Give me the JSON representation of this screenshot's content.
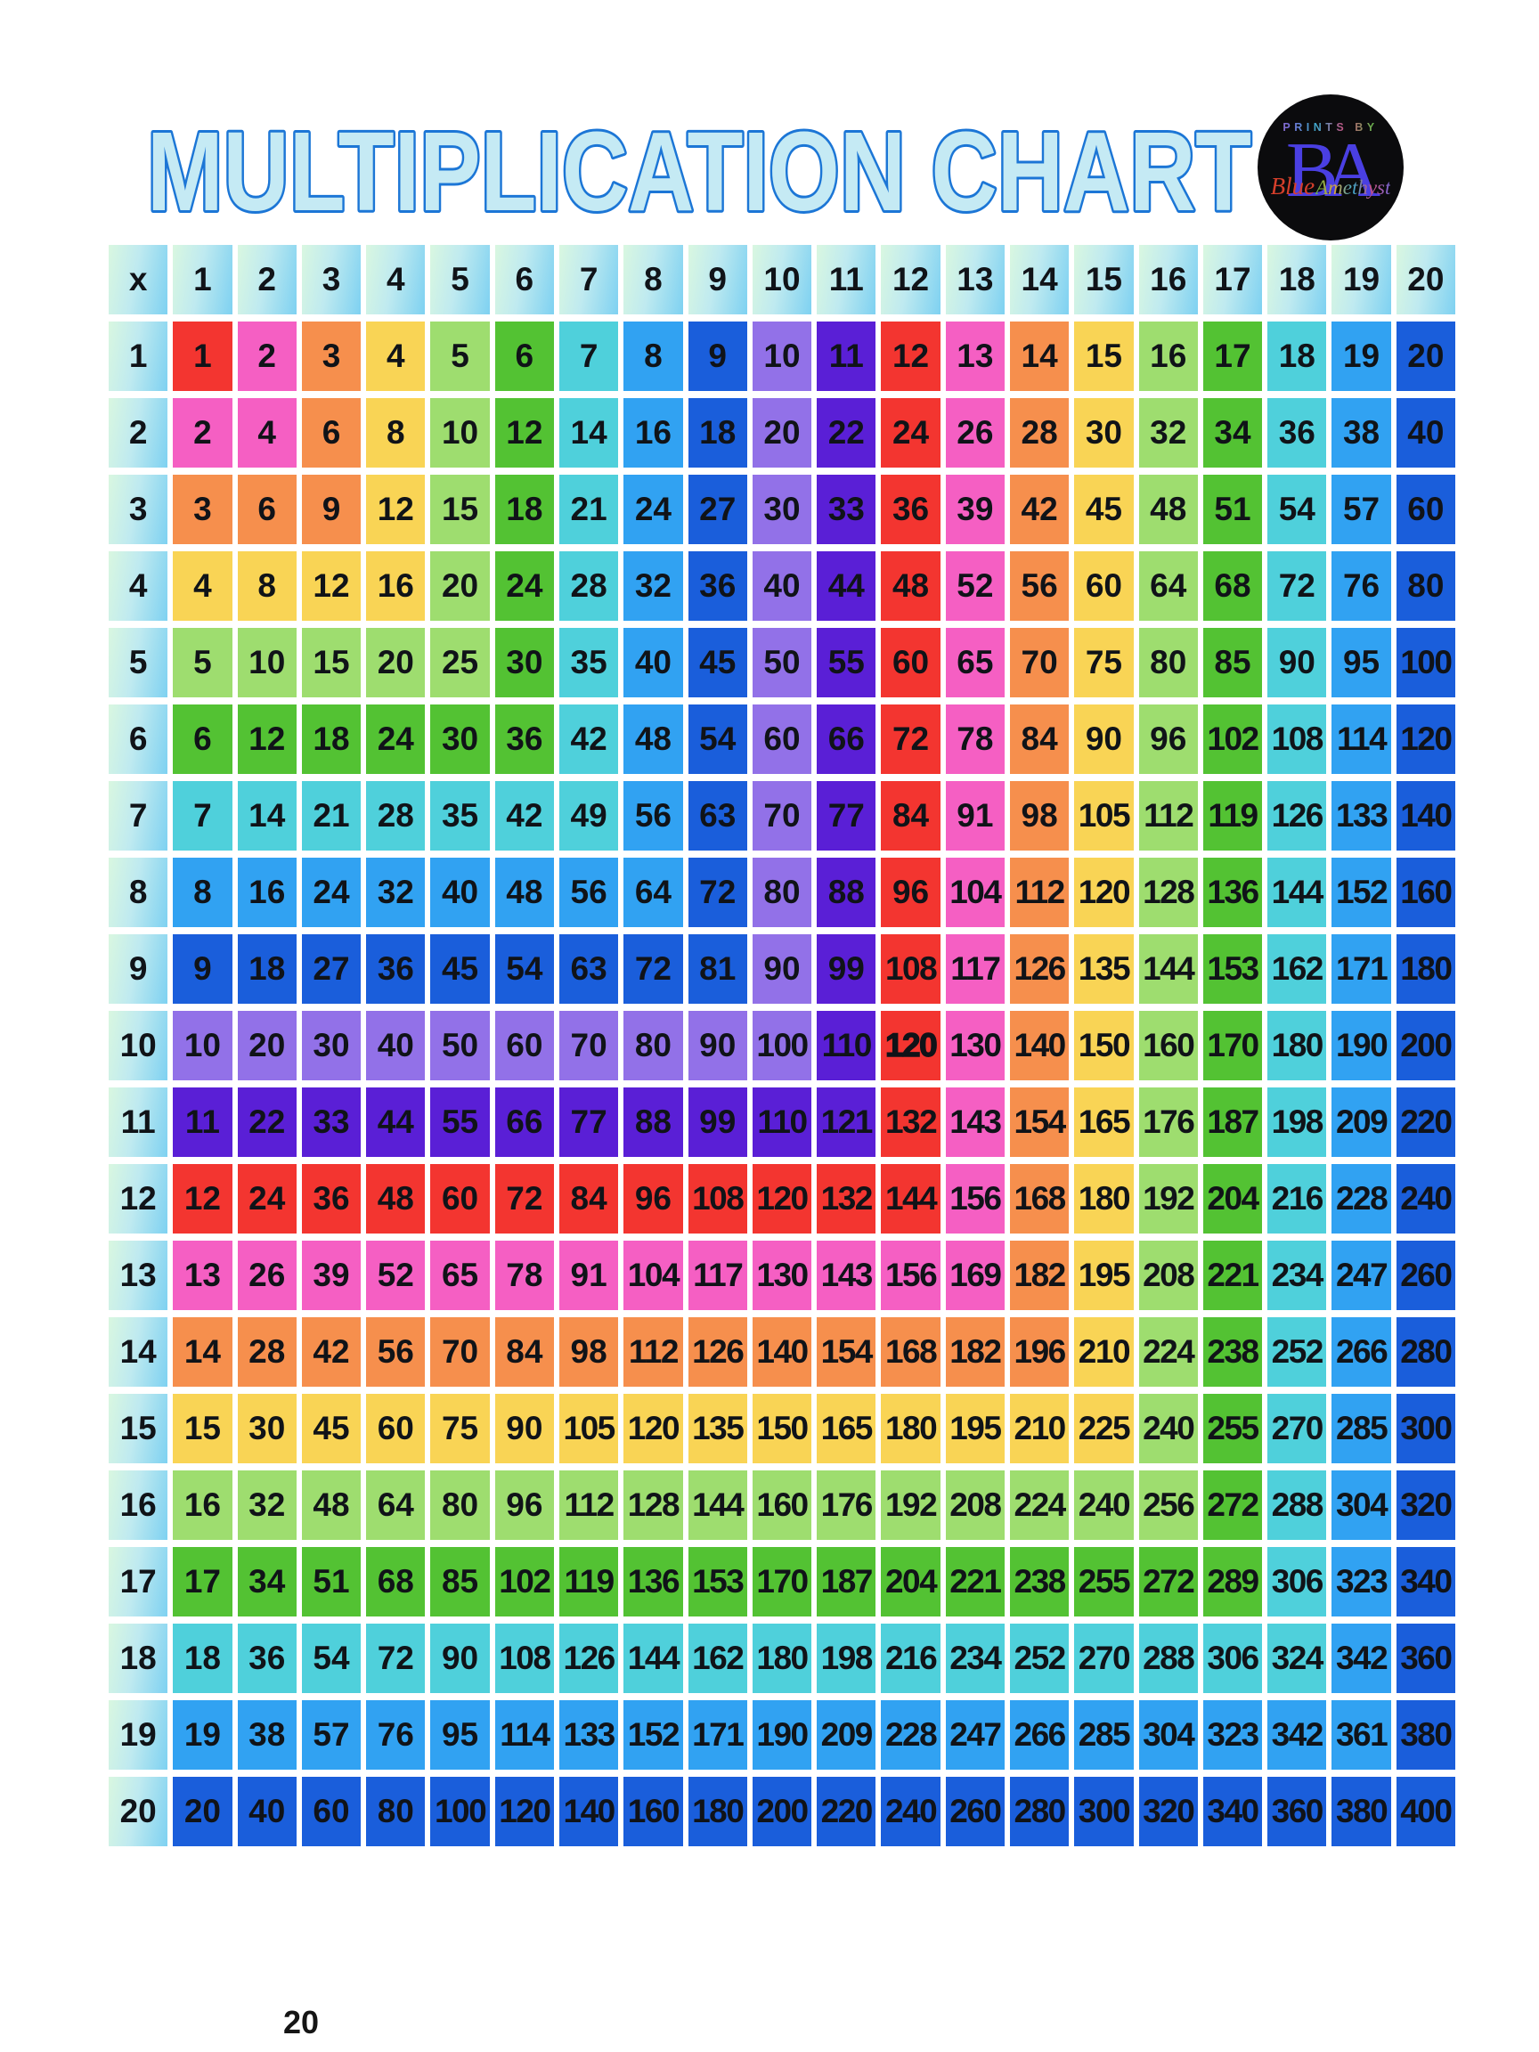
{
  "title": {
    "text": "MULTIPLICATION CHART"
  },
  "logo": {
    "top_text": "PRINTS BY",
    "monogram": "BA",
    "script_left": "Blue",
    "script_right": "Amethyst"
  },
  "page_number": "20",
  "colors": {
    "title_fill": "#C5EAF4",
    "title_outline": "#1C76D6",
    "cell_text": "#101318",
    "header_gradient_from": "#D9F7E0",
    "header_gradient_mid": "#BFEAF0",
    "header_gradient_to": "#7ED1F1",
    "logo_bg": "#0B0B0D",
    "monogram_color": "#4A3FE2",
    "script_blue_color": "#D63F2B",
    "ring_palette": [
      "#F33530",
      "#F55FC3",
      "#F68F4D",
      "#F9D455",
      "#9EDD6F",
      "#53C233",
      "#4FD0DB",
      "#31A2F2",
      "#1A5EDB",
      "#9271E8",
      "#5A1FD6"
    ]
  },
  "grid": {
    "corner_label": "x",
    "col_headers": [
      "1",
      "2",
      "3",
      "4",
      "5",
      "6",
      "7",
      "8",
      "9",
      "10",
      "11",
      "12",
      "13",
      "14",
      "15",
      "16",
      "17",
      "18",
      "19",
      "20"
    ],
    "row_headers": [
      "1",
      "2",
      "3",
      "4",
      "5",
      "6",
      "7",
      "8",
      "9",
      "10",
      "11",
      "12",
      "13",
      "14",
      "15",
      "16",
      "17",
      "18",
      "19",
      "20"
    ],
    "extra_bold_cell": {
      "row": 10,
      "col": 12
    },
    "rows": [
      [
        1,
        2,
        3,
        4,
        5,
        6,
        7,
        8,
        9,
        10,
        11,
        12,
        13,
        14,
        15,
        16,
        17,
        18,
        19,
        20
      ],
      [
        2,
        4,
        6,
        8,
        10,
        12,
        14,
        16,
        18,
        20,
        22,
        24,
        26,
        28,
        30,
        32,
        34,
        36,
        38,
        40
      ],
      [
        3,
        6,
        9,
        12,
        15,
        18,
        21,
        24,
        27,
        30,
        33,
        36,
        39,
        42,
        45,
        48,
        51,
        54,
        57,
        60
      ],
      [
        4,
        8,
        12,
        16,
        20,
        24,
        28,
        32,
        36,
        40,
        44,
        48,
        52,
        56,
        60,
        64,
        68,
        72,
        76,
        80
      ],
      [
        5,
        10,
        15,
        20,
        25,
        30,
        35,
        40,
        45,
        50,
        55,
        60,
        65,
        70,
        75,
        80,
        85,
        90,
        95,
        100
      ],
      [
        6,
        12,
        18,
        24,
        30,
        36,
        42,
        48,
        54,
        60,
        66,
        72,
        78,
        84,
        90,
        96,
        102,
        108,
        114,
        120
      ],
      [
        7,
        14,
        21,
        28,
        35,
        42,
        49,
        56,
        63,
        70,
        77,
        84,
        91,
        98,
        105,
        112,
        119,
        126,
        133,
        140
      ],
      [
        8,
        16,
        24,
        32,
        40,
        48,
        56,
        64,
        72,
        80,
        88,
        96,
        104,
        112,
        120,
        128,
        136,
        144,
        152,
        160
      ],
      [
        9,
        18,
        27,
        36,
        45,
        54,
        63,
        72,
        81,
        90,
        99,
        108,
        117,
        126,
        135,
        144,
        153,
        162,
        171,
        180
      ],
      [
        10,
        20,
        30,
        40,
        50,
        60,
        70,
        80,
        90,
        100,
        110,
        120,
        130,
        140,
        150,
        160,
        170,
        180,
        190,
        200
      ],
      [
        11,
        22,
        33,
        44,
        55,
        66,
        77,
        88,
        99,
        110,
        121,
        132,
        143,
        154,
        165,
        176,
        187,
        198,
        209,
        220
      ],
      [
        12,
        24,
        36,
        48,
        60,
        72,
        84,
        96,
        108,
        120,
        132,
        144,
        156,
        168,
        180,
        192,
        204,
        216,
        228,
        240
      ],
      [
        13,
        26,
        39,
        52,
        65,
        78,
        91,
        104,
        117,
        130,
        143,
        156,
        169,
        182,
        195,
        208,
        221,
        234,
        247,
        260
      ],
      [
        14,
        28,
        42,
        56,
        70,
        84,
        98,
        112,
        126,
        140,
        154,
        168,
        182,
        196,
        210,
        224,
        238,
        252,
        266,
        280
      ],
      [
        15,
        30,
        45,
        60,
        75,
        90,
        105,
        120,
        135,
        150,
        165,
        180,
        195,
        210,
        225,
        240,
        255,
        270,
        285,
        300
      ],
      [
        16,
        32,
        48,
        64,
        80,
        96,
        112,
        128,
        144,
        160,
        176,
        192,
        208,
        224,
        240,
        256,
        272,
        288,
        304,
        320
      ],
      [
        17,
        34,
        51,
        68,
        85,
        102,
        119,
        136,
        153,
        170,
        187,
        204,
        221,
        238,
        255,
        272,
        289,
        306,
        323,
        340
      ],
      [
        18,
        36,
        54,
        72,
        90,
        108,
        126,
        144,
        162,
        180,
        198,
        216,
        234,
        252,
        270,
        288,
        306,
        324,
        342,
        360
      ],
      [
        19,
        38,
        57,
        76,
        95,
        114,
        133,
        152,
        171,
        190,
        209,
        228,
        247,
        266,
        285,
        304,
        323,
        342,
        361,
        380
      ],
      [
        20,
        40,
        60,
        80,
        100,
        120,
        140,
        160,
        180,
        200,
        220,
        240,
        260,
        280,
        300,
        320,
        340,
        360,
        380,
        400
      ]
    ]
  }
}
